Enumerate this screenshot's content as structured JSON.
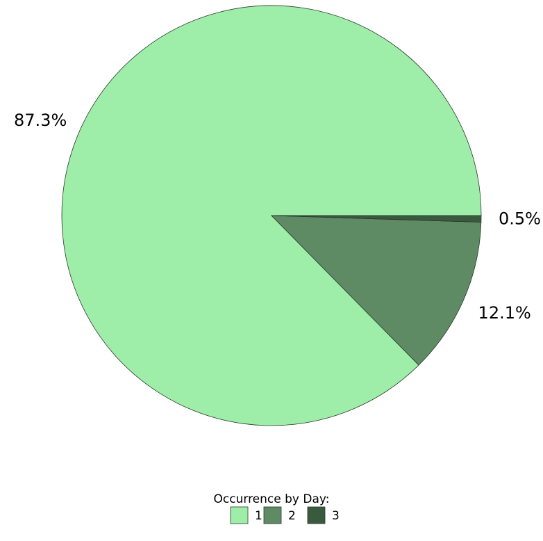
{
  "chart_data": {
    "type": "pie",
    "categories": [
      "1",
      "2",
      "3"
    ],
    "values": [
      87.3,
      12.1,
      0.5
    ],
    "value_labels": [
      "87.3%",
      "12.1%",
      "0.5%"
    ],
    "colors": [
      "#9eeda8",
      "#5e8b64",
      "#3a5a3e"
    ],
    "legend_title": "Occurrence by Day:",
    "legend_position": "bottom"
  }
}
